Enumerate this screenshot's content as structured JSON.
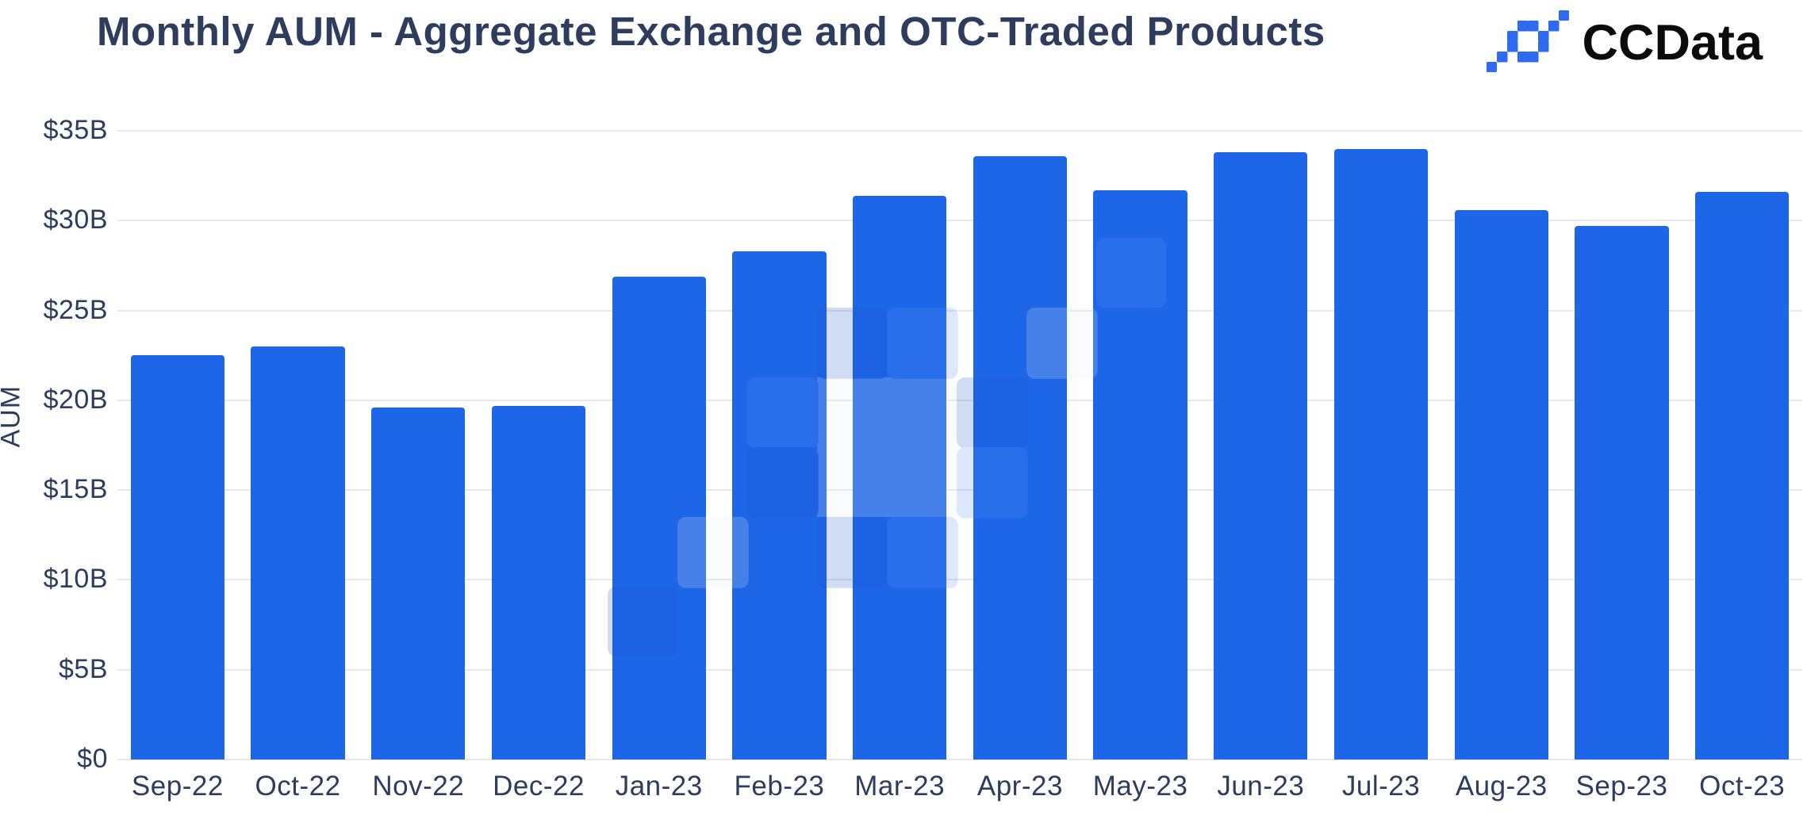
{
  "header": {
    "title": "Monthly AUM - Aggregate Exchange and OTC-Traded Products",
    "logo_text": "CCData"
  },
  "y_axis_title": "AUM",
  "chart_data": {
    "type": "bar",
    "title": "Monthly AUM - Aggregate Exchange and OTC-Traded Products",
    "categories": [
      "Sep-22",
      "Oct-22",
      "Nov-22",
      "Dec-22",
      "Jan-23",
      "Feb-23",
      "Mar-23",
      "Apr-23",
      "May-23",
      "Jun-23",
      "Jul-23",
      "Aug-23",
      "Sep-23",
      "Oct-23"
    ],
    "values": [
      22.5,
      23.0,
      19.6,
      19.7,
      26.9,
      28.3,
      31.4,
      33.6,
      31.7,
      33.8,
      34.0,
      30.6,
      29.7,
      31.6
    ],
    "unit": "billions USD",
    "xlabel": "",
    "ylabel": "AUM",
    "ylim": [
      0,
      35
    ],
    "yticks": [
      {
        "label": "$35B",
        "value": 35
      },
      {
        "label": "$30B",
        "value": 30
      },
      {
        "label": "$25B",
        "value": 25
      },
      {
        "label": "$20B",
        "value": 20
      },
      {
        "label": "$15B",
        "value": 15
      },
      {
        "label": "$10B",
        "value": 10
      },
      {
        "label": "$5B",
        "value": 5
      },
      {
        "label": "$0",
        "value": 0
      }
    ],
    "grid": "horizontal",
    "legend": "none",
    "bar_color": "#1d66e8"
  },
  "colors": {
    "bar": "#1d66e8",
    "title_text": "#2e3c5e",
    "axis_text": "#2e3c5e",
    "gridline": "#e8e8e8",
    "logo_blue": "#2e6bf0",
    "logo_text": "#0b0b0b",
    "background": "#ffffff"
  },
  "watermark": {
    "name": "ccdata-logo-watermark"
  }
}
